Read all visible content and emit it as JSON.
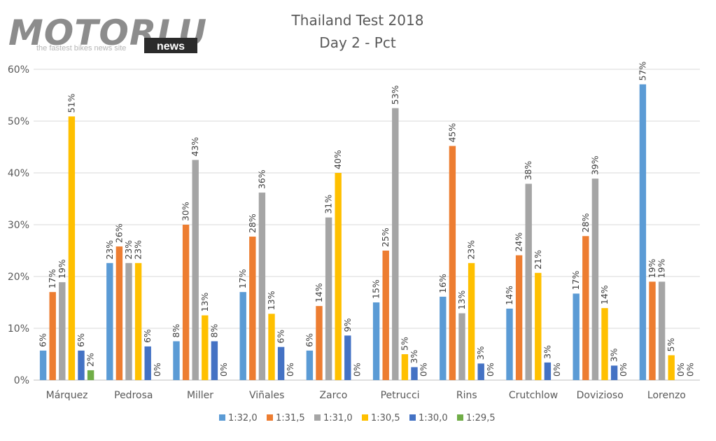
{
  "logo": {
    "word": "MOTORLU",
    "news": "news",
    "tagline": "the fastest bikes news site"
  },
  "chart_data": {
    "type": "bar",
    "title": "Thailand Test 2018",
    "subtitle": "Day 2 - Pct",
    "xlabel": "",
    "ylabel": "",
    "ylim": [
      0,
      60
    ],
    "yticks": [
      0,
      10,
      20,
      30,
      40,
      50,
      60
    ],
    "ytick_labels": [
      "0%",
      "10%",
      "20%",
      "30%",
      "40%",
      "50%",
      "60%"
    ],
    "grid": true,
    "legend_position": "bottom",
    "categories": [
      "Márquez",
      "Pedrosa",
      "Miller",
      "Viñales",
      "Zarco",
      "Petrucci",
      "Rins",
      "Crutchlow",
      "Dovizioso",
      "Lorenzo"
    ],
    "series": [
      {
        "name": "1:32,0",
        "color": "#5b9bd5",
        "values": [
          5.7,
          22.6,
          7.5,
          17.0,
          5.7,
          15.0,
          16.1,
          13.8,
          16.7,
          57.1
        ],
        "labels": [
          "6%",
          "23%",
          "8%",
          "17%",
          "6%",
          "15%",
          "16%",
          "14%",
          "17%",
          "57%"
        ]
      },
      {
        "name": "1:31,5",
        "color": "#ed7d31",
        "values": [
          17.0,
          25.8,
          30.0,
          27.7,
          14.3,
          25.0,
          45.2,
          24.1,
          27.8,
          19.0
        ],
        "labels": [
          "17%",
          "26%",
          "30%",
          "28%",
          "14%",
          "25%",
          "45%",
          "24%",
          "28%",
          "19%"
        ]
      },
      {
        "name": "1:31,0",
        "color": "#a5a5a5",
        "values": [
          18.9,
          22.6,
          42.5,
          36.2,
          31.4,
          52.5,
          12.9,
          37.9,
          38.9,
          19.0
        ],
        "labels": [
          "19%",
          "23%",
          "43%",
          "36%",
          "31%",
          "53%",
          "13%",
          "38%",
          "39%",
          "19%"
        ]
      },
      {
        "name": "1:30,5",
        "color": "#ffc000",
        "values": [
          50.9,
          22.6,
          12.5,
          12.8,
          40.0,
          5.0,
          22.6,
          20.7,
          13.9,
          4.8
        ],
        "labels": [
          "51%",
          "23%",
          "13%",
          "13%",
          "40%",
          "5%",
          "23%",
          "21%",
          "14%",
          "5%"
        ]
      },
      {
        "name": "1:30,0",
        "color": "#4472c4",
        "values": [
          5.7,
          6.5,
          7.5,
          6.4,
          8.6,
          2.5,
          3.2,
          3.4,
          2.8,
          0
        ],
        "labels": [
          "6%",
          "6%",
          "8%",
          "6%",
          "9%",
          "3%",
          "3%",
          "3%",
          "3%",
          "0%"
        ]
      },
      {
        "name": "1:29,5",
        "color": "#70ad47",
        "values": [
          1.9,
          0,
          0,
          0,
          0,
          0,
          0,
          0,
          0,
          0
        ],
        "labels": [
          "2%",
          "0%",
          "0%",
          "0%",
          "0%",
          "0%",
          "0%",
          "0%",
          "0%",
          "0%"
        ]
      }
    ]
  }
}
